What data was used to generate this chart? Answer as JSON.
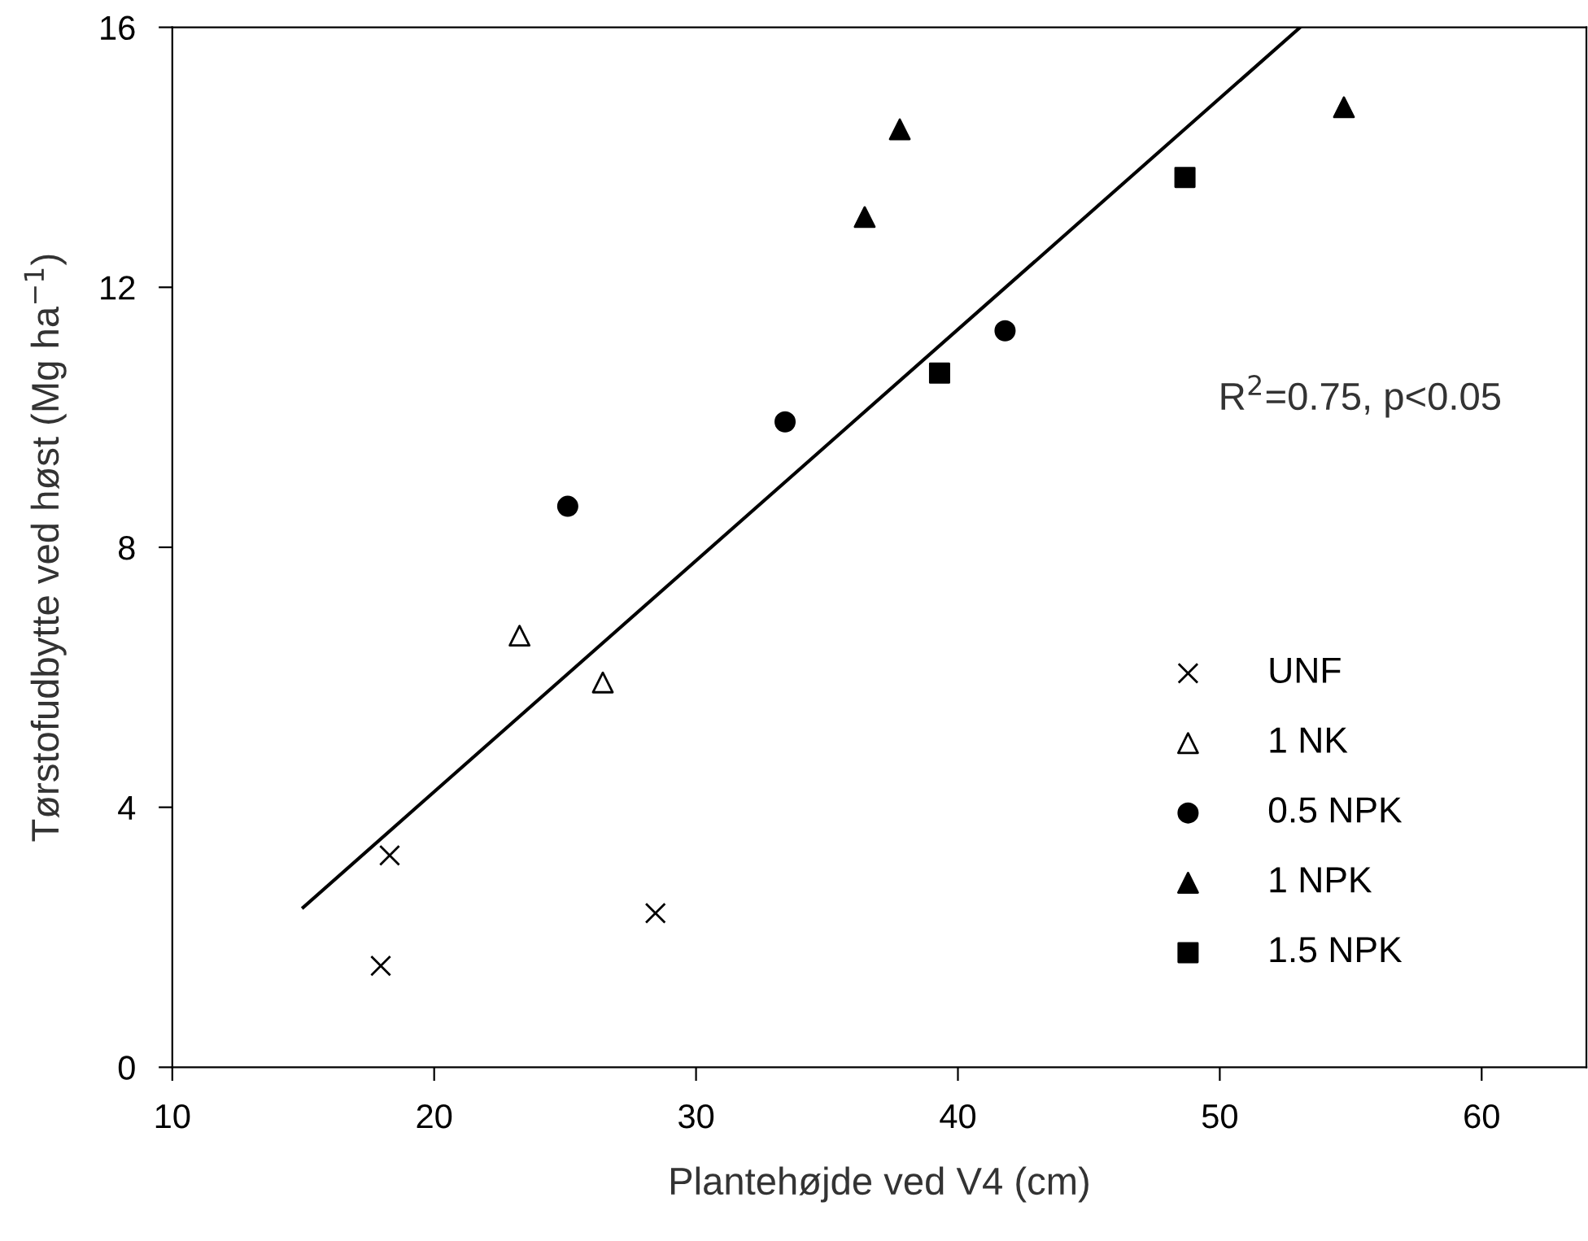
{
  "chart_data": {
    "type": "scatter",
    "xlabel": "Plantehøjde ved V4 (cm)",
    "ylabel": "Tørstofudbytte ved høst (Mg ha$^{−1}$)",
    "xlim": [
      10,
      64
    ],
    "xticks": [
      10,
      20,
      30,
      40,
      50,
      60
    ],
    "ylim": [
      0,
      16
    ],
    "yticks": [
      0,
      4,
      8,
      12,
      16
    ],
    "grid": false,
    "legend": "bottom right",
    "series": [
      {
        "name": "UNF",
        "marker": "cross",
        "color": "#000000",
        "x": [
          17.96,
          18.3,
          28.45
        ],
        "values": [
          1.56,
          3.26,
          2.37
        ]
      },
      {
        "name": "1 NK",
        "marker": "triangle-open",
        "color": "#000000",
        "x": [
          23.26,
          26.44
        ],
        "values": [
          6.64,
          5.92
        ]
      },
      {
        "name": "0.5 NPK",
        "marker": "circle",
        "color": "#000000",
        "x": [
          25.1,
          33.4,
          41.8
        ],
        "values": [
          8.63,
          9.93,
          11.33
        ]
      },
      {
        "name": "1 NPK",
        "marker": "triangle",
        "color": "#000000",
        "x": [
          36.44,
          37.78,
          54.74
        ],
        "values": [
          13.08,
          14.43,
          14.77
        ]
      },
      {
        "name": "1.5 NPK",
        "marker": "square",
        "color": "#000000",
        "x": [
          39.3,
          48.67
        ],
        "values": [
          10.68,
          13.69
        ]
      },
      {
        "type": "line",
        "color": "#000000",
        "x": [
          15.0,
          53.07
        ],
        "values": [
          2.46,
          16.0
        ]
      }
    ],
    "annotations": [
      "R$^{2}$=0.75, p<0.05"
    ]
  }
}
